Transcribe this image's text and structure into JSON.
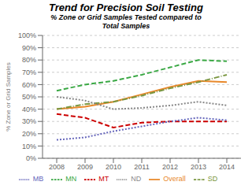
{
  "chart_data": {
    "type": "line",
    "title": "Trend for Precision Soil Testing",
    "subtitle": "% Zone or Grid Samples Tested compared to\nTotal Samples",
    "y_label": "% Zone or Grid Samples",
    "x": [
      2008,
      2009,
      2010,
      2011,
      2012,
      2013,
      2014
    ],
    "xlim": [
      2007.5,
      2014.5
    ],
    "xticks": [
      2008,
      2009,
      2010,
      2011,
      2012,
      2013,
      2014
    ],
    "ylim": [
      0,
      100
    ],
    "yticks": [
      {
        "value": 0,
        "label": "0%"
      },
      {
        "value": 10,
        "label": "10%"
      },
      {
        "value": 20,
        "label": "20%"
      },
      {
        "value": 30,
        "label": "30%"
      },
      {
        "value": 40,
        "label": "40%"
      },
      {
        "value": 50,
        "label": "50%"
      },
      {
        "value": 60,
        "label": "60%"
      },
      {
        "value": 70,
        "label": "70%"
      },
      {
        "value": 80,
        "label": "80%"
      },
      {
        "value": 90,
        "label": "90%"
      },
      {
        "value": 100,
        "label": "100%"
      }
    ],
    "grid": true,
    "legend": "bottom",
    "series": [
      {
        "name": "Overall",
        "color": "#E8882A",
        "line_style": "solid",
        "values": [
          40,
          42,
          46,
          52,
          58,
          63,
          62
        ]
      },
      {
        "name": "MN",
        "color": "#3AA844",
        "line_style": "dashed",
        "values": [
          55,
          60,
          63,
          68,
          74,
          80,
          79
        ]
      },
      {
        "name": "SD",
        "color": "#7A9640",
        "line_style": "dashdot",
        "values": [
          40,
          44,
          46,
          51,
          57,
          62,
          68
        ]
      },
      {
        "name": "ND",
        "color": "#888888",
        "line_style": "dotted",
        "values": [
          50,
          47,
          40,
          41,
          43,
          46,
          43
        ]
      },
      {
        "name": "MT",
        "color": "#CC0000",
        "line_style": "dashed",
        "values": [
          36,
          33,
          25,
          29,
          30,
          30,
          30
        ]
      },
      {
        "name": "MB",
        "color": "#6666BB",
        "line_style": "dotted",
        "values": [
          15,
          17,
          22,
          26,
          30,
          33,
          31
        ]
      }
    ]
  }
}
